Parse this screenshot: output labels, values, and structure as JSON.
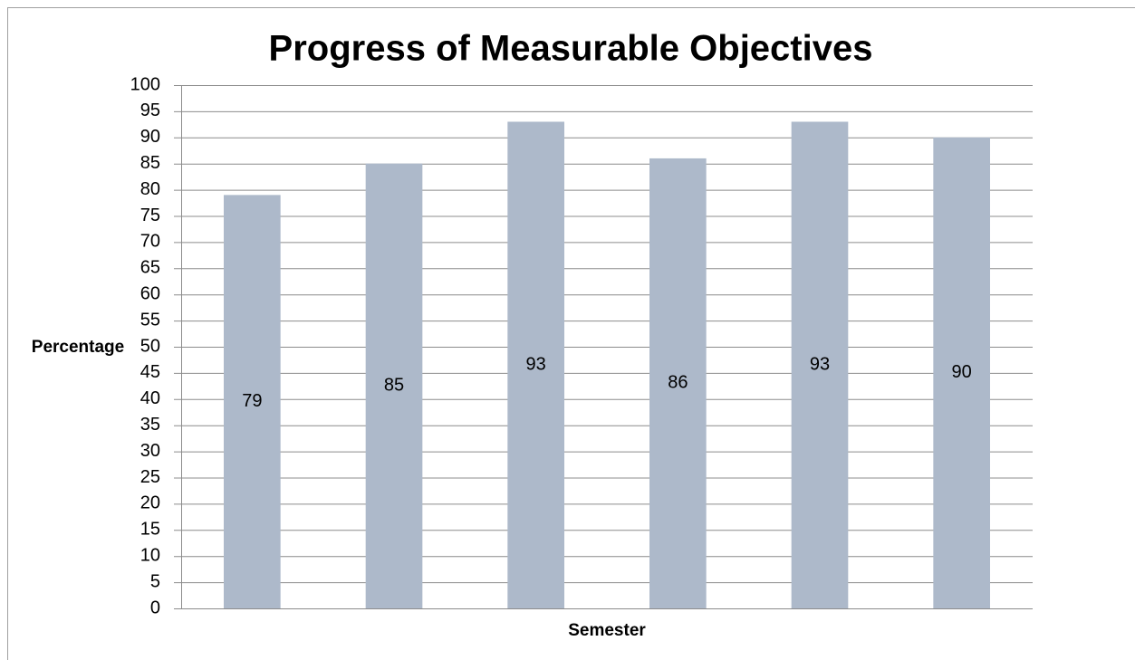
{
  "chart_data": {
    "type": "bar",
    "title": "Progress of Measurable Objectives",
    "x_label": "Semester",
    "y_label": "Percentage",
    "categories": [
      null,
      null,
      null,
      null,
      null,
      null
    ],
    "values": [
      79,
      85,
      93,
      86,
      93,
      90
    ],
    "color": "#adb9ca",
    "ylim": [
      0,
      100
    ],
    "yticks": [
      0,
      5,
      10,
      15,
      20,
      25,
      30,
      35,
      40,
      45,
      50,
      55,
      60,
      65,
      70,
      75,
      80,
      85,
      90,
      95,
      100
    ],
    "grid": true
  }
}
